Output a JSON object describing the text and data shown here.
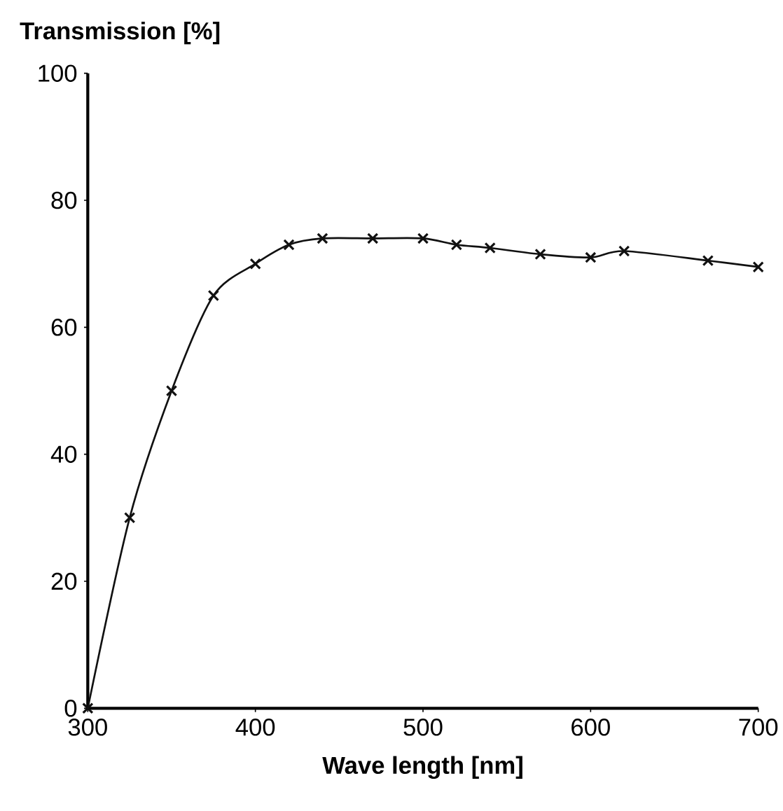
{
  "chart_data": {
    "type": "line",
    "ylabel": "Transmission [%]",
    "xlabel": "Wave length [nm]",
    "x": [
      300,
      325,
      350,
      375,
      400,
      420,
      440,
      470,
      500,
      520,
      540,
      570,
      600,
      620,
      670,
      700
    ],
    "series": [
      {
        "color": "#111111",
        "values": [
          0,
          30,
          50,
          65,
          70,
          73,
          74,
          74,
          74,
          73,
          72.5,
          71.5,
          71,
          72,
          70.5,
          69.5
        ]
      }
    ],
    "xlim": [
      300,
      700
    ],
    "ylim": [
      0,
      100
    ],
    "xticks": [
      300,
      400,
      500,
      600,
      700
    ],
    "yticks": [
      0,
      20,
      40,
      60,
      80,
      100
    ],
    "marker": "cross",
    "line_style": "solid",
    "grid": false
  }
}
